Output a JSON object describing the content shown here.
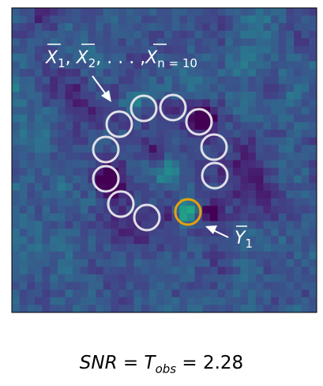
{
  "figure": {
    "label_x_series": "X̄₁, X̄₂, . . . , X̄ₙ₌₁₀",
    "label_x_parts": [
      "X",
      "1",
      ", ",
      "X",
      "2",
      ", . . . ,",
      "X",
      "n = 10"
    ],
    "label_y_parts": [
      "Y",
      "1"
    ],
    "colors": {
      "ring_reference": "#e0e0e8",
      "ring_target": "#e8a00c",
      "arrow": "#ffffff",
      "colormap": "viridis"
    }
  },
  "caption": {
    "snr": "SNR",
    "eq1": " = ",
    "t": "T",
    "t_sub": "obs",
    "eq2": " = ",
    "value": "2.28"
  }
}
